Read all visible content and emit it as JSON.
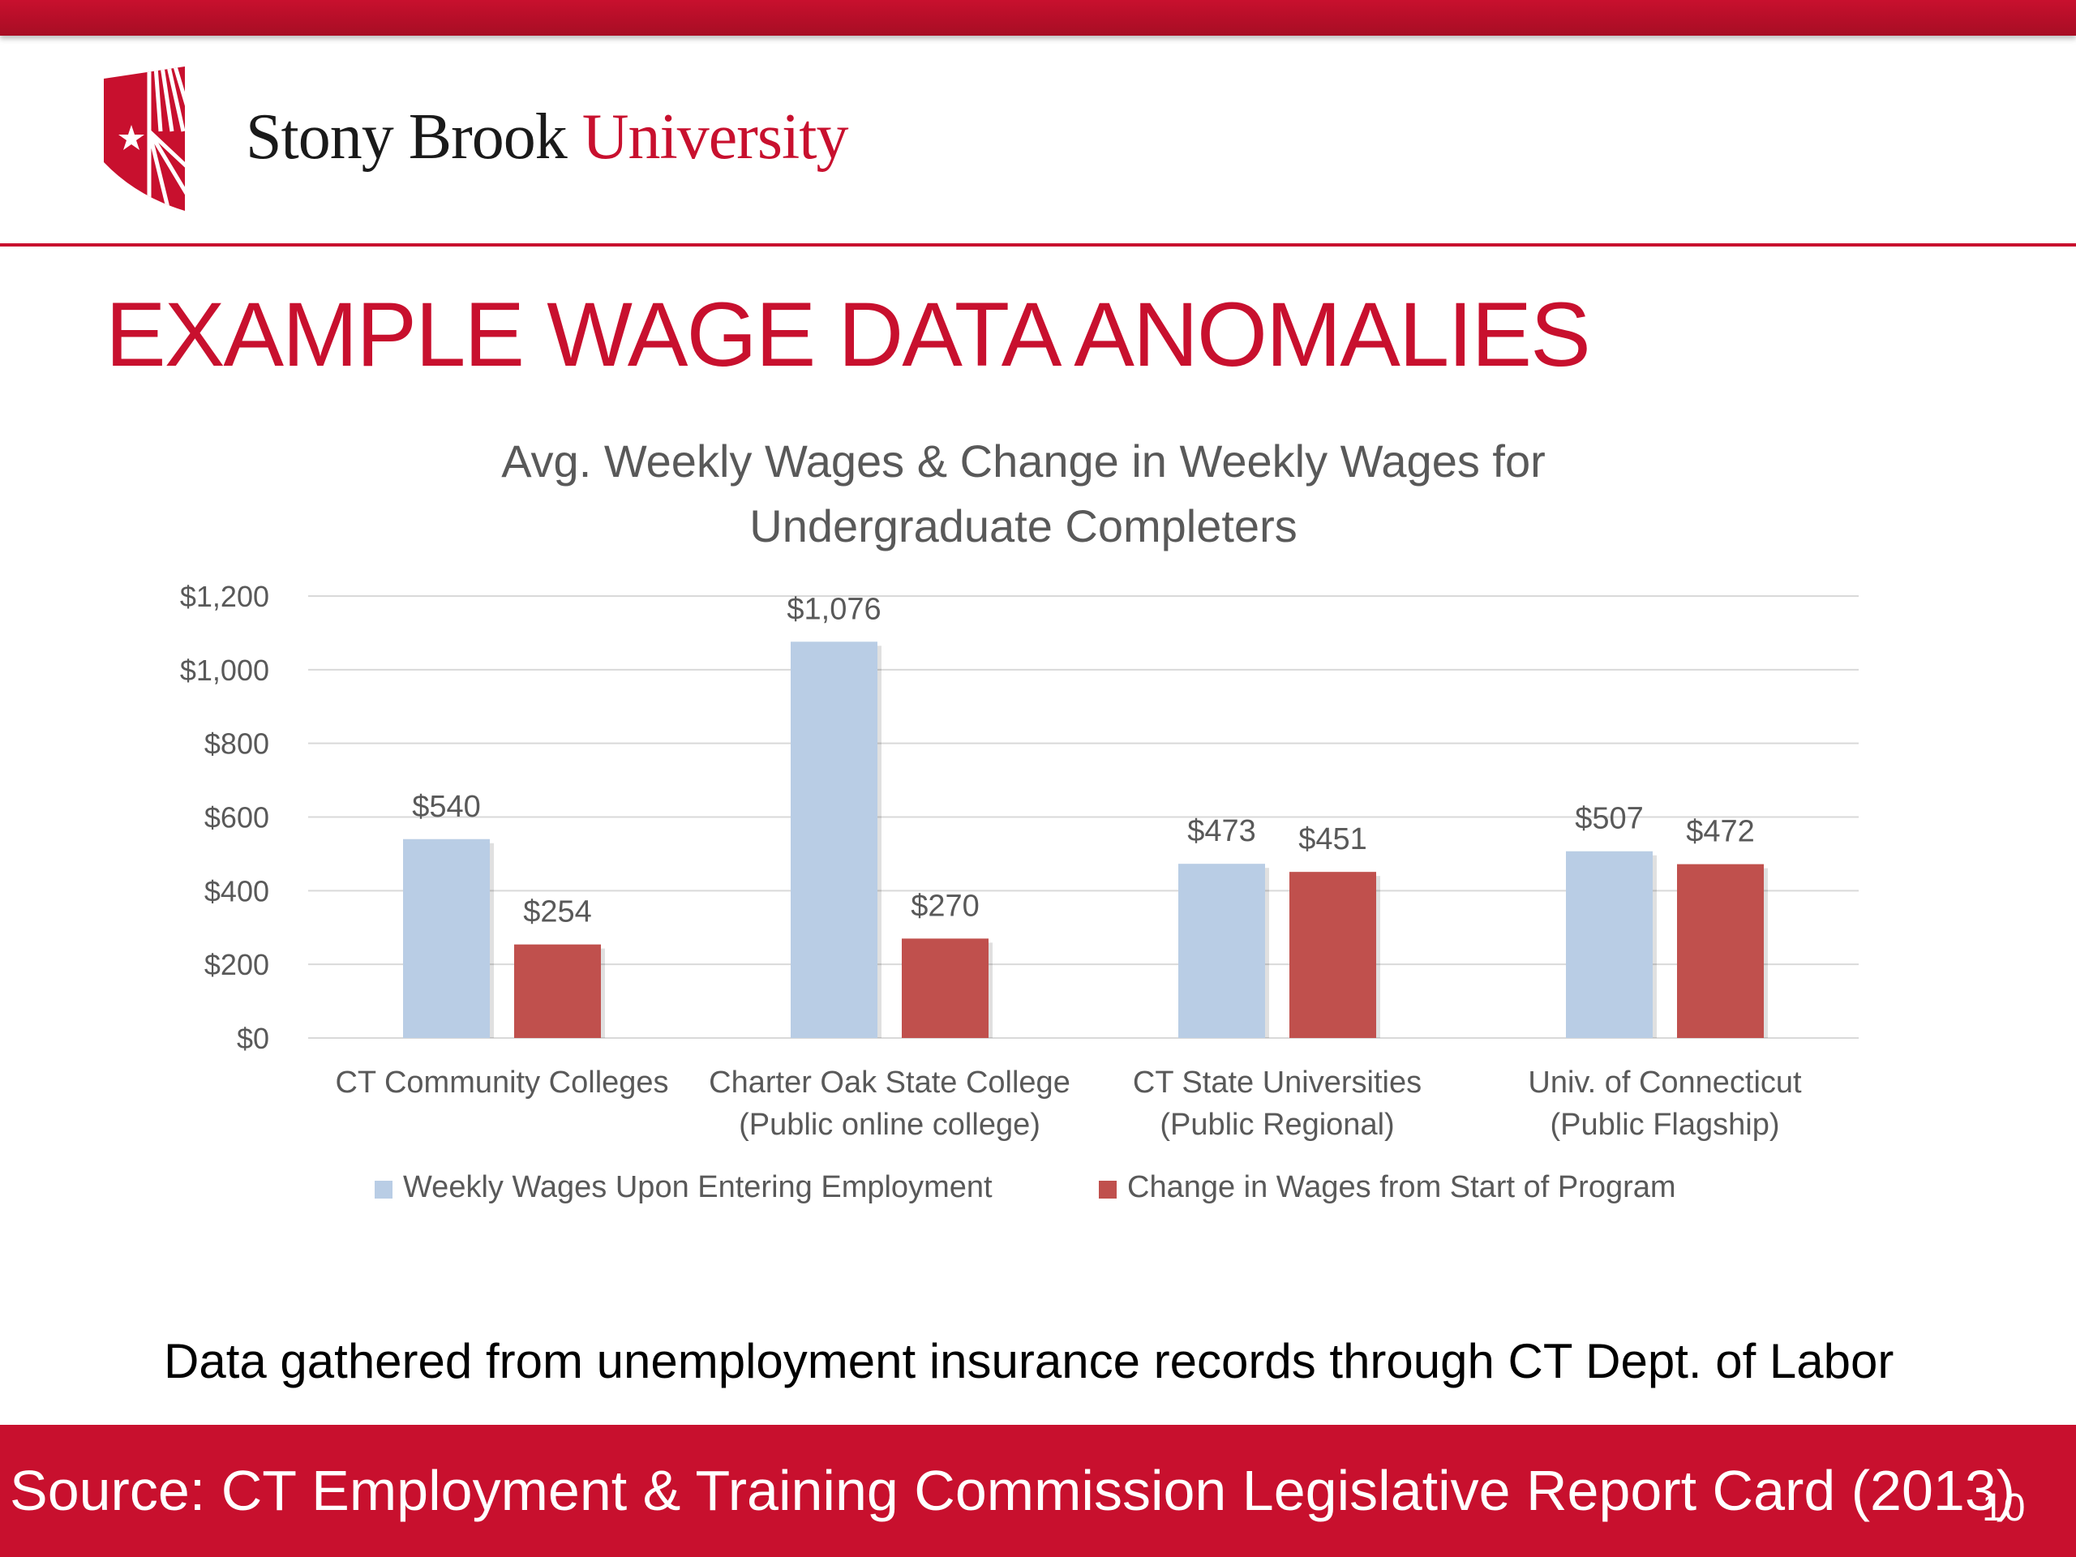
{
  "colors": {
    "brand_red": "#c8102e",
    "series_1": "#b9cde5",
    "series_2": "#c0504d",
    "chart_text": "#595959",
    "grid": "#d9d9d9"
  },
  "header": {
    "logo_icon": "shield-star-icon",
    "wordmark_part1": "Stony Brook",
    "wordmark_part2": "University"
  },
  "slide": {
    "title": "EXAMPLE WAGE DATA ANOMALIES",
    "footnote": "Data gathered from unemployment insurance records through CT Dept. of Labor",
    "source": "Source: CT Employment & Training Commission Legislative Report Card (2013)",
    "page_number": "10"
  },
  "chart_data": {
    "type": "bar",
    "title_lines": [
      "Avg. Weekly Wages & Change in Weekly Wages for",
      "Undergraduate Completers"
    ],
    "category_lines": [
      [
        "CT Community Colleges"
      ],
      [
        "Charter Oak State College",
        "(Public online college)"
      ],
      [
        "CT State Universities",
        "(Public Regional)"
      ],
      [
        "Univ. of Connecticut",
        "(Public Flagship)"
      ]
    ],
    "series": [
      {
        "name": "Weekly Wages Upon Entering Employment",
        "values": [
          540,
          1076,
          473,
          507
        ],
        "labels": [
          "$540",
          "$1,076",
          "$473",
          "$507"
        ],
        "color": "#b9cde5"
      },
      {
        "name": "Change in Wages from Start of Program",
        "values": [
          254,
          270,
          451,
          472
        ],
        "labels": [
          "$254",
          "$270",
          "$451",
          "$472"
        ],
        "color": "#c0504d"
      }
    ],
    "ylim": [
      0,
      1200
    ],
    "yticks": [
      0,
      200,
      400,
      600,
      800,
      1000,
      1200
    ],
    "ytick_labels": [
      "$0",
      "$200",
      "$400",
      "$600",
      "$800",
      "$1,000",
      "$1,200"
    ],
    "grid": true,
    "legend_position": "bottom"
  }
}
